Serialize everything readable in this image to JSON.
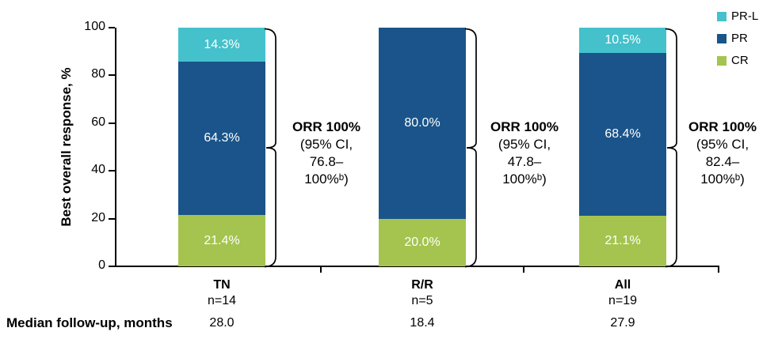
{
  "chart_data": {
    "type": "bar",
    "stacked": true,
    "title": "",
    "xlabel": "",
    "ylabel": "Best overall response, %",
    "ylim": [
      0,
      100
    ],
    "yticks": [
      0,
      20,
      40,
      60,
      80,
      100
    ],
    "grid": false,
    "categories": [
      {
        "label": "TN",
        "sublabel": "n=14"
      },
      {
        "label": "R/R",
        "sublabel": "n=5"
      },
      {
        "label": "All",
        "sublabel": "n=19"
      }
    ],
    "series": [
      {
        "name": "CR",
        "color": "#A4C44F",
        "values": [
          21.4,
          20.0,
          21.1
        ],
        "labels": [
          "21.4%",
          "20.0%",
          "21.1%"
        ]
      },
      {
        "name": "PR",
        "color": "#1A548A",
        "values": [
          64.3,
          80.0,
          68.4
        ],
        "labels": [
          "64.3%",
          "80.0%",
          "68.4%"
        ]
      },
      {
        "name": "PR-L",
        "color": "#44C1CB",
        "values": [
          14.3,
          0.0,
          10.5
        ],
        "labels": [
          "14.3%",
          "",
          "10.5%"
        ]
      }
    ],
    "legend": {
      "position": "top-right",
      "entries": [
        {
          "label": "PR-L",
          "color": "#44C1CB"
        },
        {
          "label": "PR",
          "color": "#1A548A"
        },
        {
          "label": "CR",
          "color": "#A4C44F"
        }
      ]
    },
    "annotations": [
      {
        "lines": [
          "ORR 100%",
          "(95% CI,",
          "76.8–",
          "100%ᵇ)"
        ]
      },
      {
        "lines": [
          "ORR 100%",
          "(95% CI,",
          "47.8–",
          "100%ᵇ)"
        ]
      },
      {
        "lines": [
          "ORR 100%",
          "(95% CI,",
          "82.4–",
          "100%ᵇ)"
        ]
      }
    ],
    "footer": {
      "label": "Median follow-up, months",
      "values": [
        "28.0",
        "18.4",
        "27.9"
      ]
    }
  }
}
